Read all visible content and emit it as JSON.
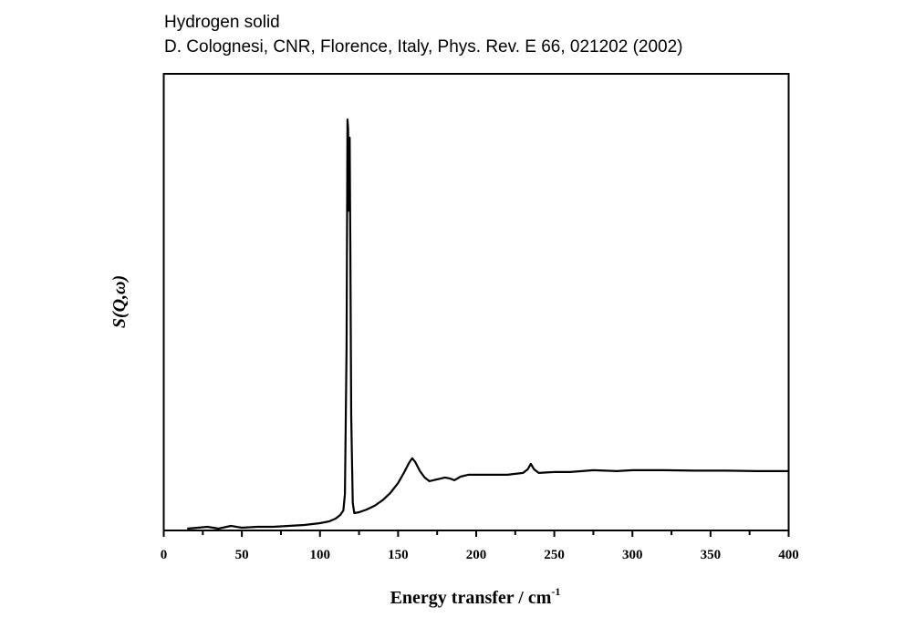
{
  "chart_data": {
    "type": "line",
    "title": "Hydrogen solid",
    "subtitle": "D. Colognesi, CNR, Florence, Italy, Phys. Rev. E 66, 021202 (2002)",
    "xlabel": "Energy transfer / cm",
    "xlabel_superscript": "-1",
    "ylabel": "S(Q,ω)",
    "xlim": [
      0,
      400
    ],
    "ylim": [
      0,
      1
    ],
    "xticks": [
      "0",
      "50",
      "100",
      "150",
      "200",
      "250",
      "300",
      "350",
      "400"
    ],
    "grid": false,
    "series": [
      {
        "name": "S(Q,ω)",
        "color": "#000000",
        "x": [
          15,
          22,
          28,
          35,
          43,
          50,
          60,
          70,
          80,
          90,
          100,
          106,
          110,
          113,
          115,
          116,
          117,
          117.6,
          118,
          118.5,
          119,
          119.5,
          120,
          121,
          122,
          125,
          130,
          135,
          140,
          145,
          150,
          154,
          157,
          159,
          161,
          164,
          167,
          170,
          175,
          180,
          183,
          186,
          190,
          195,
          200,
          210,
          220,
          225,
          230,
          233,
          235,
          237,
          240,
          250,
          260,
          275,
          290,
          300,
          320,
          340,
          360,
          380,
          400
        ],
        "y": [
          0.004,
          0.006,
          0.008,
          0.004,
          0.01,
          0.006,
          0.008,
          0.008,
          0.01,
          0.012,
          0.016,
          0.02,
          0.026,
          0.034,
          0.044,
          0.08,
          0.4,
          0.9,
          0.88,
          0.7,
          0.86,
          0.6,
          0.25,
          0.06,
          0.038,
          0.04,
          0.046,
          0.054,
          0.066,
          0.082,
          0.104,
          0.128,
          0.148,
          0.158,
          0.15,
          0.13,
          0.116,
          0.108,
          0.112,
          0.116,
          0.114,
          0.11,
          0.118,
          0.122,
          0.122,
          0.122,
          0.122,
          0.124,
          0.126,
          0.134,
          0.146,
          0.134,
          0.126,
          0.128,
          0.128,
          0.132,
          0.13,
          0.132,
          0.132,
          0.131,
          0.131,
          0.13,
          0.13
        ]
      }
    ]
  }
}
